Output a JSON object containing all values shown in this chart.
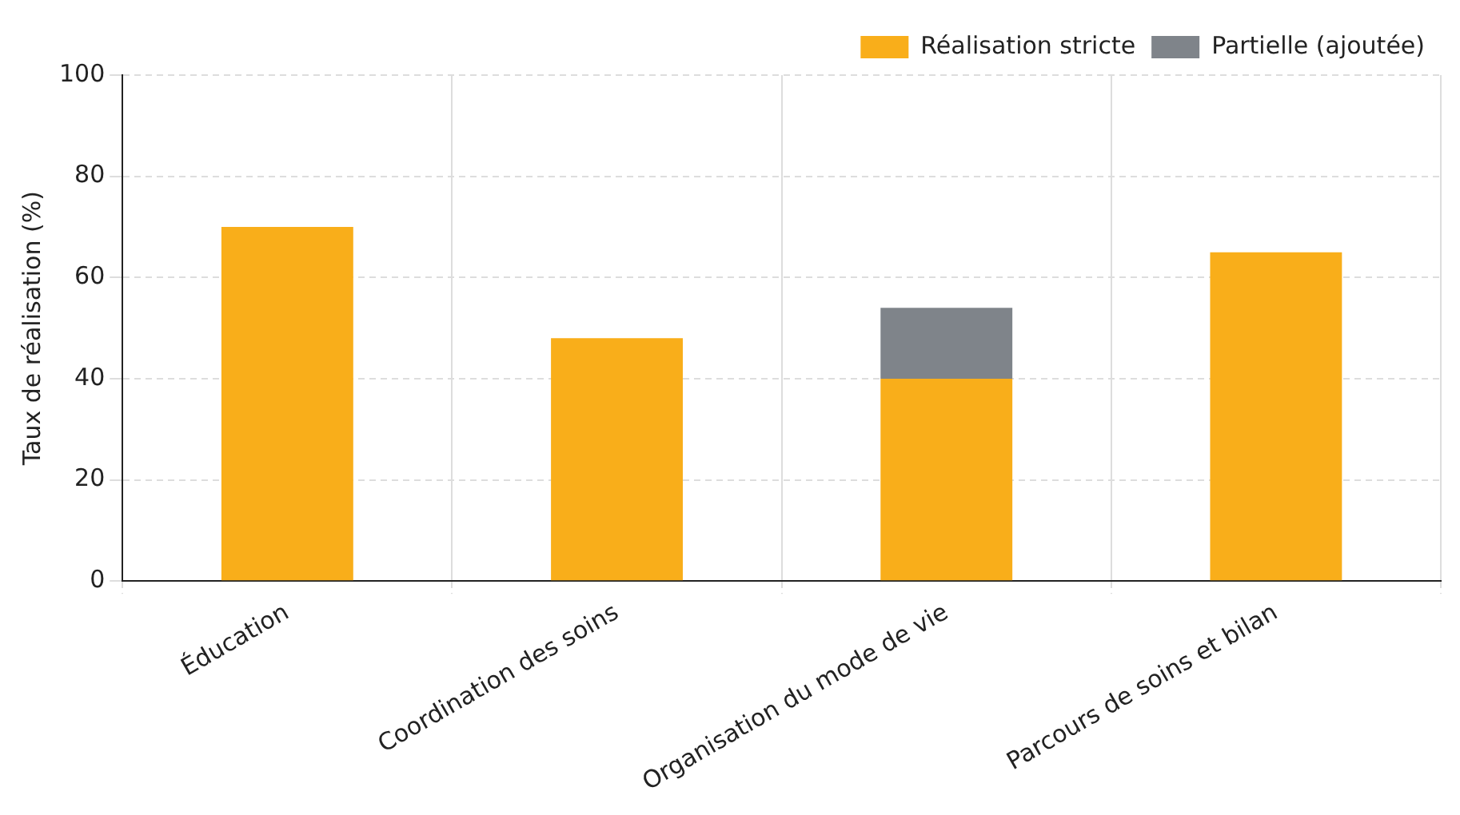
{
  "chart_data": {
    "type": "bar",
    "ylabel": "Taux de réalisation (%)",
    "categories": [
      "Éducation",
      "Coordination des soins",
      "Organisation du mode de vie",
      "Parcours de soins et bilan"
    ],
    "series": [
      {
        "name": "Réalisation stricte",
        "color": "#f9ae1a",
        "values": [
          70,
          48,
          40,
          65
        ]
      },
      {
        "name": "Partielle (ajoutée)",
        "color": "#7f848a",
        "values": [
          null,
          null,
          14,
          null
        ]
      }
    ],
    "stacked": true,
    "ylim": [
      0,
      100
    ],
    "yticks": [
      0,
      20,
      40,
      60,
      80,
      100
    ],
    "grid": true,
    "legend": "top right"
  }
}
